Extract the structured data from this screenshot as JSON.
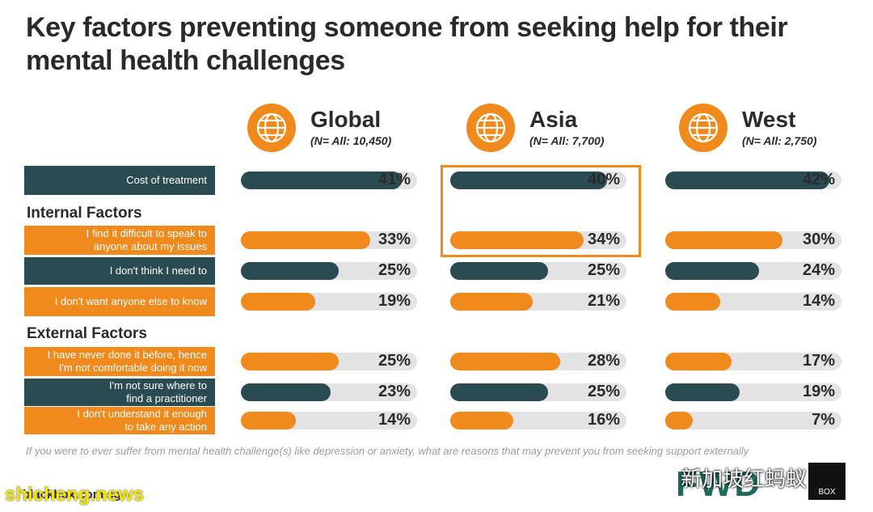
{
  "title": "Key factors preventing someone from seeking help for their mental health challenges",
  "regions": [
    {
      "name": "Global",
      "n": "(N= All: 10,450)"
    },
    {
      "name": "Asia",
      "n": "(N= All: 7,700)"
    },
    {
      "name": "West",
      "n": "(N= All: 2,750)"
    }
  ],
  "sections": {
    "internal": "Internal Factors",
    "external": "External Factors"
  },
  "footnote": "If you were to ever suffer from mental health challenge(s) like depression or anxiety, what are reasons that may prevent you from seeking support externally",
  "source": "blackbox.com.sg",
  "logos": {
    "fwd": "FWD",
    "box": "BOX"
  },
  "watermarks": {
    "text": "新加坡红蚂蚁",
    "site": "shicheng.news"
  },
  "colors": {
    "teal": "#2b4b52",
    "orange": "#f08a1d",
    "track": "#e3e3e3"
  },
  "chart_data": {
    "type": "bar",
    "categories": [
      "Cost of treatment",
      "I find it difficult to speak to anyone about my issues",
      "I don't think I need to",
      "I don't want anyone else to know",
      "I have never done it before, hence I'm not comfortable doing it now",
      "I'm not sure where to find a practitioner",
      "I don't understand it enough to take any action"
    ],
    "category_lines": [
      [
        "Cost of treatment"
      ],
      [
        "I find it difficult to speak to",
        "anyone about my issues"
      ],
      [
        "I don't think I need to"
      ],
      [
        "I don't want anyone else to know"
      ],
      [
        "I have never done it before, hence",
        "I'm not comfortable doing it now"
      ],
      [
        "I'm not sure where to",
        "find a practitioner"
      ],
      [
        "I don't understand it enough",
        "to take any action"
      ]
    ],
    "category_colors": [
      "teal",
      "orange",
      "teal",
      "orange",
      "orange",
      "teal",
      "orange"
    ],
    "series": [
      {
        "name": "Global",
        "values": [
          41,
          33,
          25,
          19,
          25,
          23,
          14
        ]
      },
      {
        "name": "Asia",
        "values": [
          40,
          34,
          25,
          21,
          28,
          25,
          16
        ]
      },
      {
        "name": "West",
        "values": [
          42,
          30,
          24,
          14,
          17,
          19,
          7
        ]
      }
    ],
    "value_labels": [
      [
        "41%",
        "33%",
        "25%",
        "19%",
        "25%",
        "23%",
        "14%"
      ],
      [
        "40%",
        "34%",
        "25%",
        "21%",
        "28%",
        "25%",
        "16%"
      ],
      [
        "42%",
        "30%",
        "24%",
        "14%",
        "17%",
        "19%",
        "7%"
      ]
    ],
    "highlighted": {
      "series": "Asia",
      "categories": [
        "Cost of treatment",
        "I find it difficult to speak to anyone about my issues"
      ]
    },
    "xlim": [
      0,
      100
    ]
  }
}
